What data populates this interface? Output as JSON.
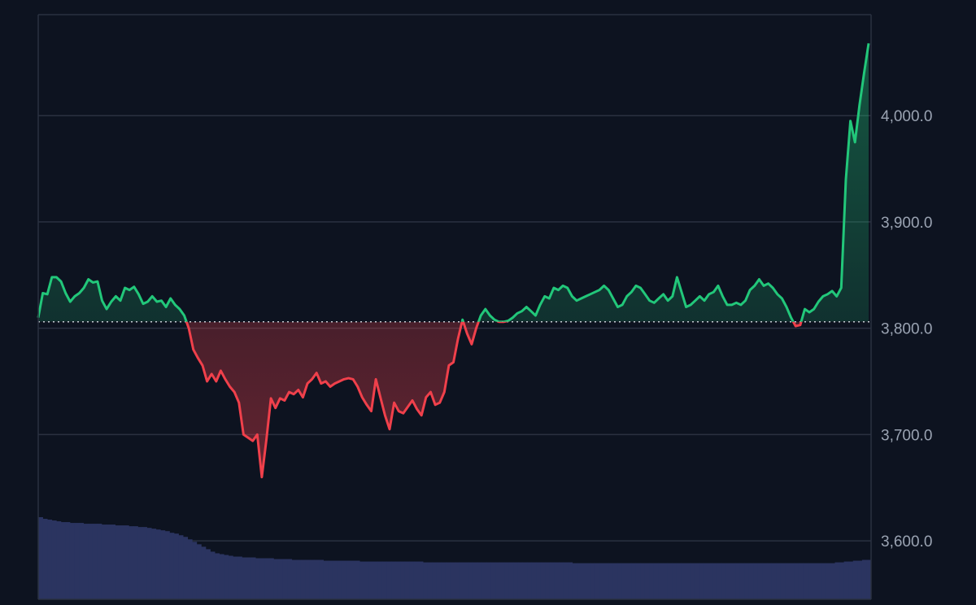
{
  "chart_data": {
    "type": "area",
    "title": "",
    "xlabel": "",
    "ylabel": "",
    "ylim": [
      3545,
      4095
    ],
    "y_ticks": [
      {
        "value": 3600,
        "label": "3,600.0"
      },
      {
        "value": 3700,
        "label": "3,700.0"
      },
      {
        "value": 3800,
        "label": "3,800.0"
      },
      {
        "value": 3900,
        "label": "3,900.0"
      },
      {
        "value": 4000,
        "label": "4,000.0"
      }
    ],
    "baseline": 3806,
    "grid": "horizontal",
    "colors": {
      "background": "#0d1320",
      "grid": "#2a3140",
      "up_line": "#22c77a",
      "down_line": "#f0404b",
      "volume": "#2b3460",
      "baseline": "#c8ccd4"
    },
    "series": [
      {
        "points": [
          [
            0,
            3810
          ],
          [
            1,
            3833
          ],
          [
            2,
            3832
          ],
          [
            3,
            3848
          ],
          [
            4,
            3848
          ],
          [
            5,
            3844
          ],
          [
            6,
            3833
          ],
          [
            7,
            3825
          ],
          [
            8,
            3830
          ],
          [
            9,
            3833
          ],
          [
            10,
            3838
          ],
          [
            11,
            3846
          ],
          [
            12,
            3843
          ],
          [
            13,
            3844
          ],
          [
            14,
            3826
          ],
          [
            15,
            3818
          ],
          [
            16,
            3825
          ],
          [
            17,
            3830
          ],
          [
            18,
            3826
          ],
          [
            19,
            3838
          ],
          [
            20,
            3836
          ],
          [
            21,
            3839
          ],
          [
            22,
            3832
          ],
          [
            23,
            3823
          ],
          [
            24,
            3825
          ],
          [
            25,
            3830
          ],
          [
            26,
            3825
          ],
          [
            27,
            3826
          ],
          [
            28,
            3820
          ],
          [
            29,
            3828
          ],
          [
            30,
            3822
          ],
          [
            31,
            3818
          ],
          [
            32,
            3812
          ],
          [
            33,
            3800
          ],
          [
            34,
            3780
          ],
          [
            35,
            3772
          ],
          [
            36,
            3765
          ],
          [
            37,
            3750
          ],
          [
            38,
            3757
          ],
          [
            39,
            3750
          ],
          [
            40,
            3760
          ],
          [
            41,
            3752
          ],
          [
            42,
            3745
          ],
          [
            43,
            3740
          ],
          [
            44,
            3730
          ],
          [
            45,
            3700
          ],
          [
            46,
            3697
          ],
          [
            47,
            3694
          ],
          [
            48,
            3700
          ],
          [
            49,
            3660
          ],
          [
            50,
            3695
          ],
          [
            51,
            3734
          ],
          [
            52,
            3725
          ],
          [
            53,
            3734
          ],
          [
            54,
            3732
          ],
          [
            55,
            3740
          ],
          [
            56,
            3738
          ],
          [
            57,
            3742
          ],
          [
            58,
            3735
          ],
          [
            59,
            3748
          ],
          [
            60,
            3752
          ],
          [
            61,
            3758
          ],
          [
            62,
            3748
          ],
          [
            63,
            3750
          ],
          [
            64,
            3745
          ],
          [
            65,
            3748
          ],
          [
            66,
            3750
          ],
          [
            67,
            3752
          ],
          [
            68,
            3753
          ],
          [
            69,
            3752
          ],
          [
            70,
            3745
          ],
          [
            71,
            3735
          ],
          [
            72,
            3728
          ],
          [
            73,
            3722
          ],
          [
            74,
            3752
          ],
          [
            75,
            3735
          ],
          [
            76,
            3718
          ],
          [
            77,
            3705
          ],
          [
            78,
            3730
          ],
          [
            79,
            3722
          ],
          [
            80,
            3720
          ],
          [
            81,
            3726
          ],
          [
            82,
            3732
          ],
          [
            83,
            3724
          ],
          [
            84,
            3718
          ],
          [
            85,
            3735
          ],
          [
            86,
            3740
          ],
          [
            87,
            3728
          ],
          [
            88,
            3730
          ],
          [
            89,
            3740
          ],
          [
            90,
            3765
          ],
          [
            91,
            3768
          ],
          [
            92,
            3790
          ],
          [
            93,
            3808
          ],
          [
            94,
            3795
          ],
          [
            95,
            3785
          ],
          [
            96,
            3800
          ],
          [
            97,
            3812
          ],
          [
            98,
            3818
          ],
          [
            99,
            3812
          ],
          [
            100,
            3808
          ],
          [
            101,
            3806
          ],
          [
            102,
            3806
          ],
          [
            103,
            3807
          ],
          [
            104,
            3810
          ],
          [
            105,
            3814
          ],
          [
            106,
            3816
          ],
          [
            107,
            3820
          ],
          [
            108,
            3816
          ],
          [
            109,
            3812
          ],
          [
            110,
            3822
          ],
          [
            111,
            3830
          ],
          [
            112,
            3828
          ],
          [
            113,
            3838
          ],
          [
            114,
            3836
          ],
          [
            115,
            3840
          ],
          [
            116,
            3838
          ],
          [
            117,
            3830
          ],
          [
            118,
            3826
          ],
          [
            119,
            3828
          ],
          [
            120,
            3830
          ],
          [
            121,
            3832
          ],
          [
            122,
            3834
          ],
          [
            123,
            3836
          ],
          [
            124,
            3840
          ],
          [
            125,
            3836
          ],
          [
            126,
            3828
          ],
          [
            127,
            3820
          ],
          [
            128,
            3822
          ],
          [
            129,
            3830
          ],
          [
            130,
            3834
          ],
          [
            131,
            3840
          ],
          [
            132,
            3838
          ],
          [
            133,
            3832
          ],
          [
            134,
            3826
          ],
          [
            135,
            3824
          ],
          [
            136,
            3828
          ],
          [
            137,
            3832
          ],
          [
            138,
            3826
          ],
          [
            139,
            3830
          ],
          [
            140,
            3848
          ],
          [
            141,
            3834
          ],
          [
            142,
            3820
          ],
          [
            143,
            3822
          ],
          [
            144,
            3826
          ],
          [
            145,
            3830
          ],
          [
            146,
            3826
          ],
          [
            147,
            3832
          ],
          [
            148,
            3834
          ],
          [
            149,
            3840
          ],
          [
            150,
            3830
          ],
          [
            151,
            3822
          ],
          [
            152,
            3822
          ],
          [
            153,
            3824
          ],
          [
            154,
            3822
          ],
          [
            155,
            3826
          ],
          [
            156,
            3836
          ],
          [
            157,
            3840
          ],
          [
            158,
            3846
          ],
          [
            159,
            3840
          ],
          [
            160,
            3842
          ],
          [
            161,
            3838
          ],
          [
            162,
            3832
          ],
          [
            163,
            3828
          ],
          [
            164,
            3820
          ],
          [
            165,
            3810
          ],
          [
            166,
            3802
          ],
          [
            167,
            3803
          ],
          [
            168,
            3818
          ],
          [
            169,
            3815
          ],
          [
            170,
            3818
          ],
          [
            171,
            3825
          ],
          [
            172,
            3830
          ],
          [
            173,
            3832
          ],
          [
            174,
            3835
          ],
          [
            175,
            3830
          ],
          [
            176,
            3838
          ],
          [
            177,
            3940
          ],
          [
            178,
            3995
          ],
          [
            179,
            3975
          ],
          [
            180,
            4010
          ],
          [
            181,
            4040
          ],
          [
            182,
            4068
          ]
        ]
      }
    ],
    "volume": [
      100,
      98,
      97,
      96,
      95,
      94,
      94,
      93,
      93,
      93,
      92,
      92,
      92,
      92,
      91,
      91,
      91,
      90,
      90,
      90,
      89,
      89,
      88,
      88,
      87,
      86,
      85,
      84,
      83,
      81,
      80,
      78,
      76,
      73,
      70,
      67,
      64,
      61,
      58,
      56,
      55,
      54,
      53,
      52,
      52,
      51,
      51,
      51,
      50,
      50,
      50,
      50,
      49,
      49,
      49,
      49,
      48,
      48,
      48,
      48,
      48,
      48,
      48,
      47,
      47,
      47,
      47,
      47,
      47,
      47,
      47,
      46,
      46,
      46,
      46,
      46,
      46,
      46,
      46,
      46,
      46,
      46,
      46,
      46,
      46,
      45,
      45,
      45,
      45,
      45,
      45,
      45,
      45,
      45,
      45,
      45,
      45,
      45,
      45,
      45,
      45,
      45,
      45,
      45,
      45,
      45,
      45,
      45,
      45,
      45,
      45,
      45,
      45,
      45,
      45,
      45,
      45,
      45,
      44,
      44,
      44,
      44,
      44,
      44,
      44,
      44,
      44,
      44,
      44,
      44,
      44,
      44,
      44,
      44,
      44,
      44,
      44,
      44,
      44,
      44,
      44,
      44,
      44,
      44,
      44,
      44,
      44,
      44,
      44,
      44,
      44,
      44,
      44,
      44,
      44,
      44,
      44,
      44,
      44,
      44,
      44,
      44,
      44,
      44,
      44,
      44,
      44,
      44,
      44,
      44,
      44,
      44,
      44,
      44,
      44,
      44,
      45,
      45,
      46,
      46,
      47,
      47,
      48,
      48
    ]
  }
}
